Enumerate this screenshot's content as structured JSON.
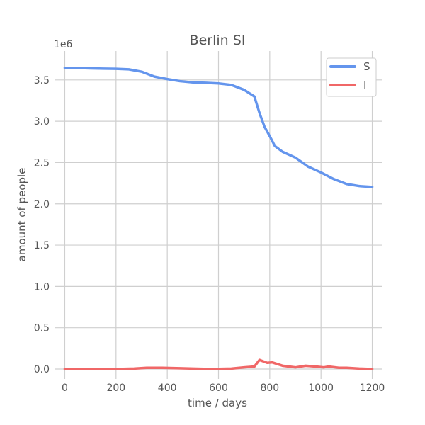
{
  "chart_data": {
    "type": "line",
    "title": "Berlin SI",
    "xlabel": "time / days",
    "ylabel": "amount of people",
    "y_offset_label": "1e6",
    "xlim": [
      -40,
      1240
    ],
    "ylim": [
      -0.12,
      3.85
    ],
    "xticks": [
      0,
      200,
      400,
      600,
      800,
      1000,
      1200
    ],
    "xtick_labels": [
      "0",
      "200",
      "400",
      "600",
      "800",
      "1000",
      "1200"
    ],
    "yticks": [
      0.0,
      0.5,
      1.0,
      1.5,
      2.0,
      2.5,
      3.0,
      3.5
    ],
    "ytick_labels": [
      "0.0",
      "0.5",
      "1.0",
      "1.5",
      "2.0",
      "2.5",
      "3.0",
      "3.5"
    ],
    "grid": true,
    "legend_position": "top-right",
    "series": [
      {
        "name": "S",
        "color": "#6495ED",
        "x": [
          0,
          50,
          100,
          150,
          200,
          250,
          300,
          350,
          400,
          450,
          500,
          550,
          600,
          650,
          700,
          740,
          760,
          780,
          800,
          820,
          850,
          900,
          950,
          1000,
          1050,
          1100,
          1150,
          1200
        ],
        "y": [
          3.645,
          3.645,
          3.64,
          3.637,
          3.635,
          3.628,
          3.6,
          3.54,
          3.51,
          3.485,
          3.47,
          3.465,
          3.458,
          3.44,
          3.38,
          3.3,
          3.1,
          2.93,
          2.82,
          2.7,
          2.63,
          2.56,
          2.45,
          2.38,
          2.3,
          2.24,
          2.215,
          2.205
        ]
      },
      {
        "name": "I",
        "color": "#F06767",
        "x": [
          0,
          100,
          200,
          270,
          320,
          380,
          450,
          500,
          570,
          650,
          700,
          740,
          760,
          790,
          810,
          850,
          900,
          940,
          980,
          1010,
          1030,
          1070,
          1100,
          1150,
          1200
        ],
        "y": [
          0.0,
          0.0,
          0.0,
          0.005,
          0.015,
          0.015,
          0.01,
          0.005,
          0.0,
          0.005,
          0.02,
          0.03,
          0.11,
          0.075,
          0.08,
          0.04,
          0.02,
          0.04,
          0.03,
          0.02,
          0.03,
          0.015,
          0.015,
          0.005,
          0.0
        ]
      }
    ]
  }
}
